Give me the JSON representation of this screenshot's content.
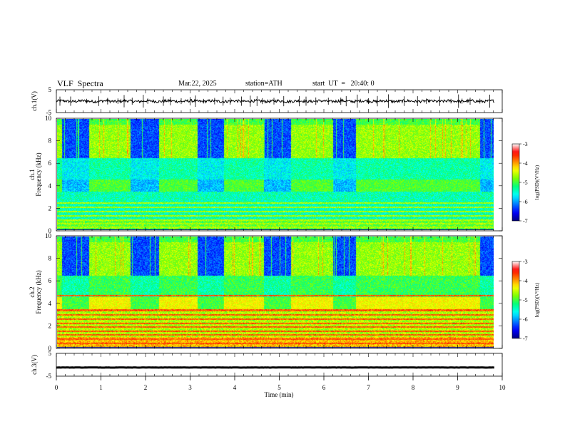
{
  "header": {
    "title": "VLF  Spectra",
    "date": "Mar.22, 2025",
    "station": "station=ATH",
    "start": "start  UT  =   20:40: 0"
  },
  "chart_data": [
    {
      "type": "line",
      "name": "ch1-time-series",
      "ylabel": "ch.1(V)",
      "ylim": [
        -5,
        5
      ],
      "yticks": [
        "5",
        "-5"
      ],
      "xlim": [
        0,
        10
      ],
      "baseline": 0,
      "noise_amplitude": 0.6,
      "spikes": [
        0.08,
        0.32,
        0.68,
        0.95,
        1.15,
        1.38,
        1.52,
        1.7,
        1.95,
        2.05,
        2.4,
        2.56,
        2.8,
        3.0,
        3.12,
        3.3,
        3.55,
        3.74,
        3.9,
        4.15,
        4.35,
        4.5,
        4.62,
        4.88,
        5.1,
        5.45,
        5.6,
        5.82,
        6.1,
        6.38,
        6.5,
        6.75,
        7.0,
        7.2,
        7.45,
        7.8,
        8.1,
        8.3,
        8.6,
        8.85,
        9.02,
        9.1,
        9.28,
        9.5,
        9.72
      ]
    },
    {
      "type": "heatmap",
      "name": "ch1-spectrogram",
      "ylabel": "ch.1\nFrequency (kHz)",
      "ylim": [
        0,
        10
      ],
      "yticks": [
        "0",
        "2",
        "4",
        "6",
        "8",
        "10"
      ],
      "xlim": [
        0,
        9.82
      ],
      "colorbar": {
        "label": "log(PSD)(V²/Hz)",
        "range": [
          -7,
          -3
        ],
        "ticks": [
          "-3",
          "-4",
          "-5",
          "-6",
          "-7"
        ]
      },
      "quiet_segments": [
        [
          0.1,
          0.72
        ],
        [
          1.65,
          2.28
        ],
        [
          3.15,
          3.75
        ],
        [
          4.65,
          5.25
        ],
        [
          6.2,
          6.72
        ],
        [
          9.5,
          9.82
        ]
      ],
      "active_segments": [
        [
          0.0,
          0.1
        ],
        [
          0.72,
          1.65
        ],
        [
          2.28,
          3.15
        ],
        [
          3.75,
          4.65
        ],
        [
          5.25,
          6.2
        ],
        [
          6.72,
          7.08
        ],
        [
          7.08,
          9.5
        ]
      ],
      "band_4khz": {
        "low": 3.5,
        "high": 4.5,
        "level": -5.2
      },
      "lines_khz": [
        0.3,
        0.6,
        0.95,
        1.3,
        1.7,
        2.1,
        2.45
      ]
    },
    {
      "type": "heatmap",
      "name": "ch2-spectrogram",
      "ylabel": "ch.2\nFrequency (kHz)",
      "ylim": [
        0,
        10
      ],
      "yticks": [
        "0",
        "2",
        "4",
        "6",
        "8",
        "10"
      ],
      "xlim": [
        0,
        9.82
      ],
      "colorbar": {
        "label": "log(PSD)(V²/Hz)",
        "range": [
          -7,
          -3
        ],
        "ticks": [
          "-3",
          "-4",
          "-5",
          "-6",
          "-7"
        ]
      },
      "quiet_segments": [
        [
          0.1,
          0.72
        ],
        [
          1.65,
          2.28
        ],
        [
          3.15,
          3.75
        ],
        [
          4.65,
          5.25
        ],
        [
          6.2,
          6.72
        ],
        [
          9.5,
          9.82
        ]
      ],
      "active_segments": [
        [
          0.0,
          0.1
        ],
        [
          0.72,
          1.65
        ],
        [
          2.28,
          3.15
        ],
        [
          3.75,
          4.65
        ],
        [
          5.25,
          6.2
        ],
        [
          6.72,
          7.08
        ],
        [
          7.08,
          9.5
        ]
      ],
      "band_4khz": {
        "low": 3.5,
        "high": 4.6,
        "level": -4.6
      },
      "lines_khz": [
        0.4,
        0.8,
        1.2,
        1.5,
        1.9,
        2.2,
        2.6,
        3.0,
        3.4,
        4.7
      ]
    },
    {
      "type": "line",
      "name": "ch3-time-series",
      "ylabel": "ch.3(V)",
      "ylim": [
        -5,
        5
      ],
      "yticks": [
        "5",
        "-5"
      ],
      "xlim": [
        0,
        9.82
      ],
      "baseline": -1.2,
      "noise_amplitude": 0.05
    }
  ],
  "x_axis": {
    "label": "Time  (min)",
    "ticks": [
      "0",
      "1",
      "2",
      "3",
      "4",
      "5",
      "6",
      "7",
      "8",
      "9",
      "10"
    ],
    "range": [
      0,
      10
    ]
  },
  "colormap": [
    "#000080",
    "#0000ff",
    "#0080ff",
    "#00ffff",
    "#00ff80",
    "#80ff00",
    "#ffff00",
    "#ff8000",
    "#ff0000",
    "#ffffff"
  ]
}
